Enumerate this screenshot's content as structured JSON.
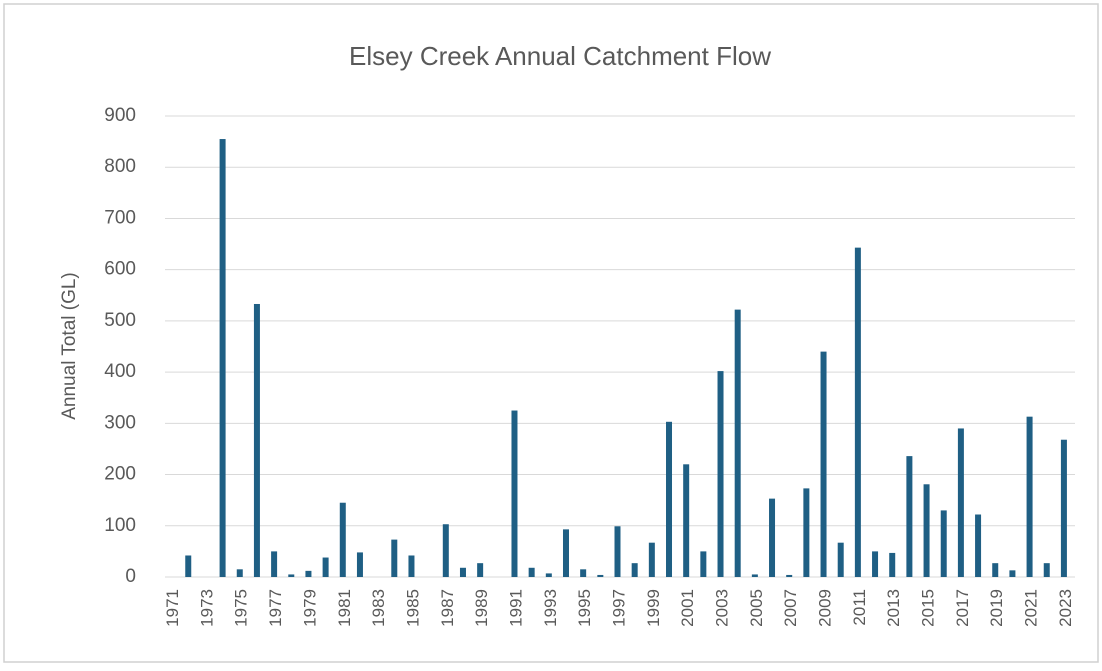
{
  "chart_data": {
    "type": "bar",
    "title": "Elsey Creek Annual Catchment Flow",
    "y_label": "Annual Total (GL)",
    "categories": [
      "1971",
      null,
      "1973",
      null,
      "1975",
      null,
      "1977",
      null,
      "1979",
      null,
      "1981",
      null,
      "1983",
      null,
      "1985",
      null,
      "1987",
      null,
      "1989",
      null,
      "1991",
      null,
      "1993",
      null,
      "1995",
      null,
      "1997",
      null,
      "1999",
      null,
      "2001",
      null,
      "2003",
      null,
      "2005",
      null,
      "2007",
      null,
      "2009",
      null,
      "2011",
      null,
      "2013",
      null,
      "2015",
      null,
      "2017",
      null,
      "2019",
      null,
      "2021",
      null,
      "2023"
    ],
    "values": [
      0,
      42,
      0,
      855,
      15,
      533,
      50,
      5,
      12,
      38,
      145,
      48,
      0,
      73,
      42,
      0,
      103,
      18,
      27,
      0,
      325,
      18,
      7,
      93,
      15,
      4,
      99,
      27,
      67,
      303,
      220,
      50,
      402,
      522,
      5,
      153,
      4,
      173,
      440,
      67,
      643,
      50,
      47,
      236,
      181,
      130,
      290,
      122,
      27,
      13,
      313,
      27,
      268
    ],
    "color": "#1f5f84",
    "ylim": [
      0,
      900
    ],
    "yticks": [
      0,
      100,
      200,
      300,
      400,
      500,
      600,
      700,
      800,
      900
    ],
    "grid": true
  }
}
